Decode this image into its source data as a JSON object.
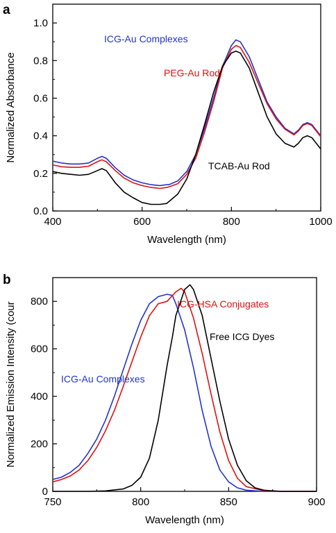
{
  "panel_labels": [
    "a",
    "b"
  ],
  "chart_data": [
    {
      "type": "line",
      "panel": "a",
      "xlabel": "Wavelength (nm)",
      "ylabel": "Normalized Absorbance",
      "xlim": [
        400,
        1000
      ],
      "ylim": [
        0.0,
        1.1
      ],
      "xticks": [
        400,
        600,
        800,
        1000
      ],
      "yticks": [
        0.0,
        0.2,
        0.4,
        0.6,
        0.8,
        1.0
      ],
      "xtick_labels": [
        "400",
        "600",
        "800",
        "1000"
      ],
      "ytick_labels": [
        "0.0",
        "0.2",
        "0.4",
        "0.6",
        "0.8",
        "1.0"
      ],
      "grid": false,
      "series": [
        {
          "name": "ICG-Au Complexes",
          "color": "#2233cc",
          "x": [
            400,
            420,
            440,
            460,
            480,
            500,
            510,
            520,
            540,
            560,
            580,
            600,
            620,
            640,
            655,
            660,
            680,
            700,
            720,
            740,
            760,
            780,
            800,
            810,
            820,
            840,
            860,
            880,
            900,
            920,
            940,
            950,
            960,
            970,
            980,
            1000
          ],
          "y": [
            0.265,
            0.255,
            0.25,
            0.25,
            0.255,
            0.28,
            0.29,
            0.28,
            0.23,
            0.19,
            0.165,
            0.15,
            0.14,
            0.135,
            0.14,
            0.14,
            0.16,
            0.21,
            0.3,
            0.44,
            0.6,
            0.77,
            0.88,
            0.91,
            0.9,
            0.82,
            0.7,
            0.58,
            0.5,
            0.44,
            0.41,
            0.43,
            0.46,
            0.47,
            0.46,
            0.4
          ]
        },
        {
          "name": "PEG-Au Rod",
          "color": "#dd1111",
          "x": [
            400,
            420,
            440,
            460,
            480,
            500,
            510,
            520,
            540,
            560,
            580,
            600,
            620,
            640,
            655,
            660,
            680,
            700,
            720,
            740,
            760,
            780,
            800,
            810,
            820,
            840,
            860,
            880,
            900,
            920,
            940,
            950,
            960,
            970,
            980,
            1000
          ],
          "y": [
            0.245,
            0.235,
            0.232,
            0.232,
            0.238,
            0.262,
            0.272,
            0.262,
            0.215,
            0.175,
            0.15,
            0.135,
            0.125,
            0.12,
            0.125,
            0.128,
            0.145,
            0.195,
            0.28,
            0.42,
            0.58,
            0.76,
            0.86,
            0.88,
            0.87,
            0.79,
            0.68,
            0.57,
            0.49,
            0.435,
            0.405,
            0.425,
            0.455,
            0.465,
            0.455,
            0.395
          ]
        },
        {
          "name": "TCAB-Au Rod",
          "color": "#000000",
          "x": [
            400,
            420,
            440,
            460,
            480,
            500,
            510,
            520,
            540,
            560,
            580,
            600,
            620,
            640,
            655,
            660,
            680,
            700,
            720,
            740,
            760,
            780,
            800,
            810,
            820,
            840,
            860,
            880,
            900,
            920,
            940,
            950,
            960,
            970,
            980,
            1000
          ],
          "y": [
            0.21,
            0.2,
            0.195,
            0.19,
            0.195,
            0.215,
            0.225,
            0.215,
            0.15,
            0.1,
            0.07,
            0.045,
            0.035,
            0.035,
            0.04,
            0.05,
            0.09,
            0.17,
            0.3,
            0.46,
            0.63,
            0.77,
            0.84,
            0.85,
            0.84,
            0.76,
            0.63,
            0.5,
            0.41,
            0.36,
            0.34,
            0.36,
            0.39,
            0.4,
            0.39,
            0.33
          ]
        }
      ],
      "annotations": [
        {
          "text": "ICG-Au  Complexes",
          "color": "#2233cc"
        },
        {
          "text": "PEG-Au Rod",
          "color": "#dd1111"
        },
        {
          "text": "TCAB-Au Rod",
          "color": "#000000"
        }
      ]
    },
    {
      "type": "line",
      "panel": "b",
      "xlabel": "Wavelength  (nm)",
      "ylabel": "Normalized Emission Intensity (cour",
      "xlim": [
        750,
        900
      ],
      "ylim": [
        0,
        900
      ],
      "xticks": [
        750,
        800,
        850,
        900
      ],
      "yticks": [
        0,
        200,
        400,
        600,
        800
      ],
      "xtick_labels": [
        "750",
        "800",
        "850",
        "900"
      ],
      "ytick_labels": [
        "0",
        "200",
        "400",
        "600",
        "800"
      ],
      "grid": false,
      "series": [
        {
          "name": "ICG-Au  Complexes",
          "color": "#2233cc",
          "x": [
            750,
            755,
            760,
            765,
            770,
            775,
            780,
            785,
            790,
            795,
            800,
            805,
            810,
            815,
            818,
            820,
            825,
            830,
            835,
            840,
            845,
            850,
            855,
            860,
            870,
            880,
            890,
            900
          ],
          "y": [
            50,
            60,
            80,
            110,
            160,
            220,
            300,
            400,
            510,
            620,
            720,
            790,
            820,
            830,
            825,
            790,
            680,
            520,
            340,
            190,
            90,
            40,
            15,
            5,
            0,
            0,
            0,
            0
          ]
        },
        {
          "name": "ICG-HSA Conjugates",
          "color": "#dd1111",
          "x": [
            750,
            755,
            760,
            765,
            770,
            775,
            780,
            785,
            790,
            795,
            800,
            805,
            810,
            815,
            820,
            823,
            825,
            830,
            835,
            840,
            845,
            850,
            855,
            860,
            870,
            880,
            890,
            900
          ],
          "y": [
            40,
            50,
            65,
            90,
            130,
            185,
            255,
            340,
            440,
            545,
            650,
            740,
            790,
            800,
            840,
            855,
            840,
            730,
            580,
            410,
            250,
            130,
            55,
            20,
            3,
            0,
            0,
            0
          ]
        },
        {
          "name": "Free ICG Dyes",
          "color": "#000000",
          "x": [
            750,
            770,
            780,
            790,
            795,
            800,
            805,
            810,
            815,
            818,
            820,
            825,
            828,
            830,
            835,
            840,
            845,
            850,
            855,
            860,
            865,
            870,
            880,
            890,
            900
          ],
          "y": [
            0,
            0,
            2,
            10,
            25,
            60,
            140,
            300,
            530,
            650,
            740,
            850,
            870,
            850,
            740,
            560,
            380,
            220,
            110,
            45,
            15,
            5,
            0,
            0,
            0
          ]
        }
      ],
      "annotations": [
        {
          "text": "ICG-Au  Complexes",
          "color": "#2233cc"
        },
        {
          "text": "ICG-HSA Conjugates",
          "color": "#dd1111"
        },
        {
          "text": "Free ICG Dyes",
          "color": "#000000"
        }
      ]
    }
  ]
}
